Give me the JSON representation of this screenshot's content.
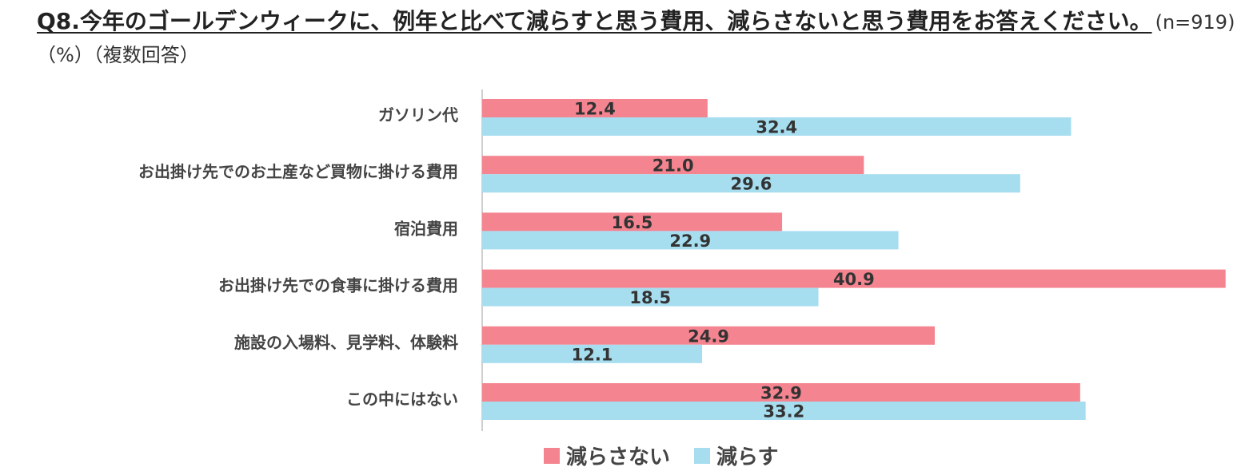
{
  "title": {
    "question": "Q8.今年のゴールデンウィークに、例年と比べて減らすと思う費用、減らさないと思う費用をお答えください。",
    "meta": "(n=919) （%）（複数回答）"
  },
  "chart_data": {
    "type": "bar",
    "orientation": "horizontal",
    "categories": [
      "ガソリン代",
      "お出掛け先でのお土産など買物に掛ける費用",
      "宿泊費用",
      "お出掛け先での食事に掛ける費用",
      "施設の入場料、見学料、体験料",
      "この中にはない"
    ],
    "series": [
      {
        "name": "減らさない",
        "color": "#F4848F",
        "values": [
          12.4,
          21.0,
          16.5,
          40.9,
          24.9,
          32.9
        ]
      },
      {
        "name": "減らす",
        "color": "#A6DDEF",
        "values": [
          32.4,
          29.6,
          22.9,
          18.5,
          12.1,
          33.2
        ]
      }
    ],
    "value_format": "one-decimal",
    "legend_position": "bottom",
    "xlim": [
      0,
      41
    ],
    "grid": false
  }
}
